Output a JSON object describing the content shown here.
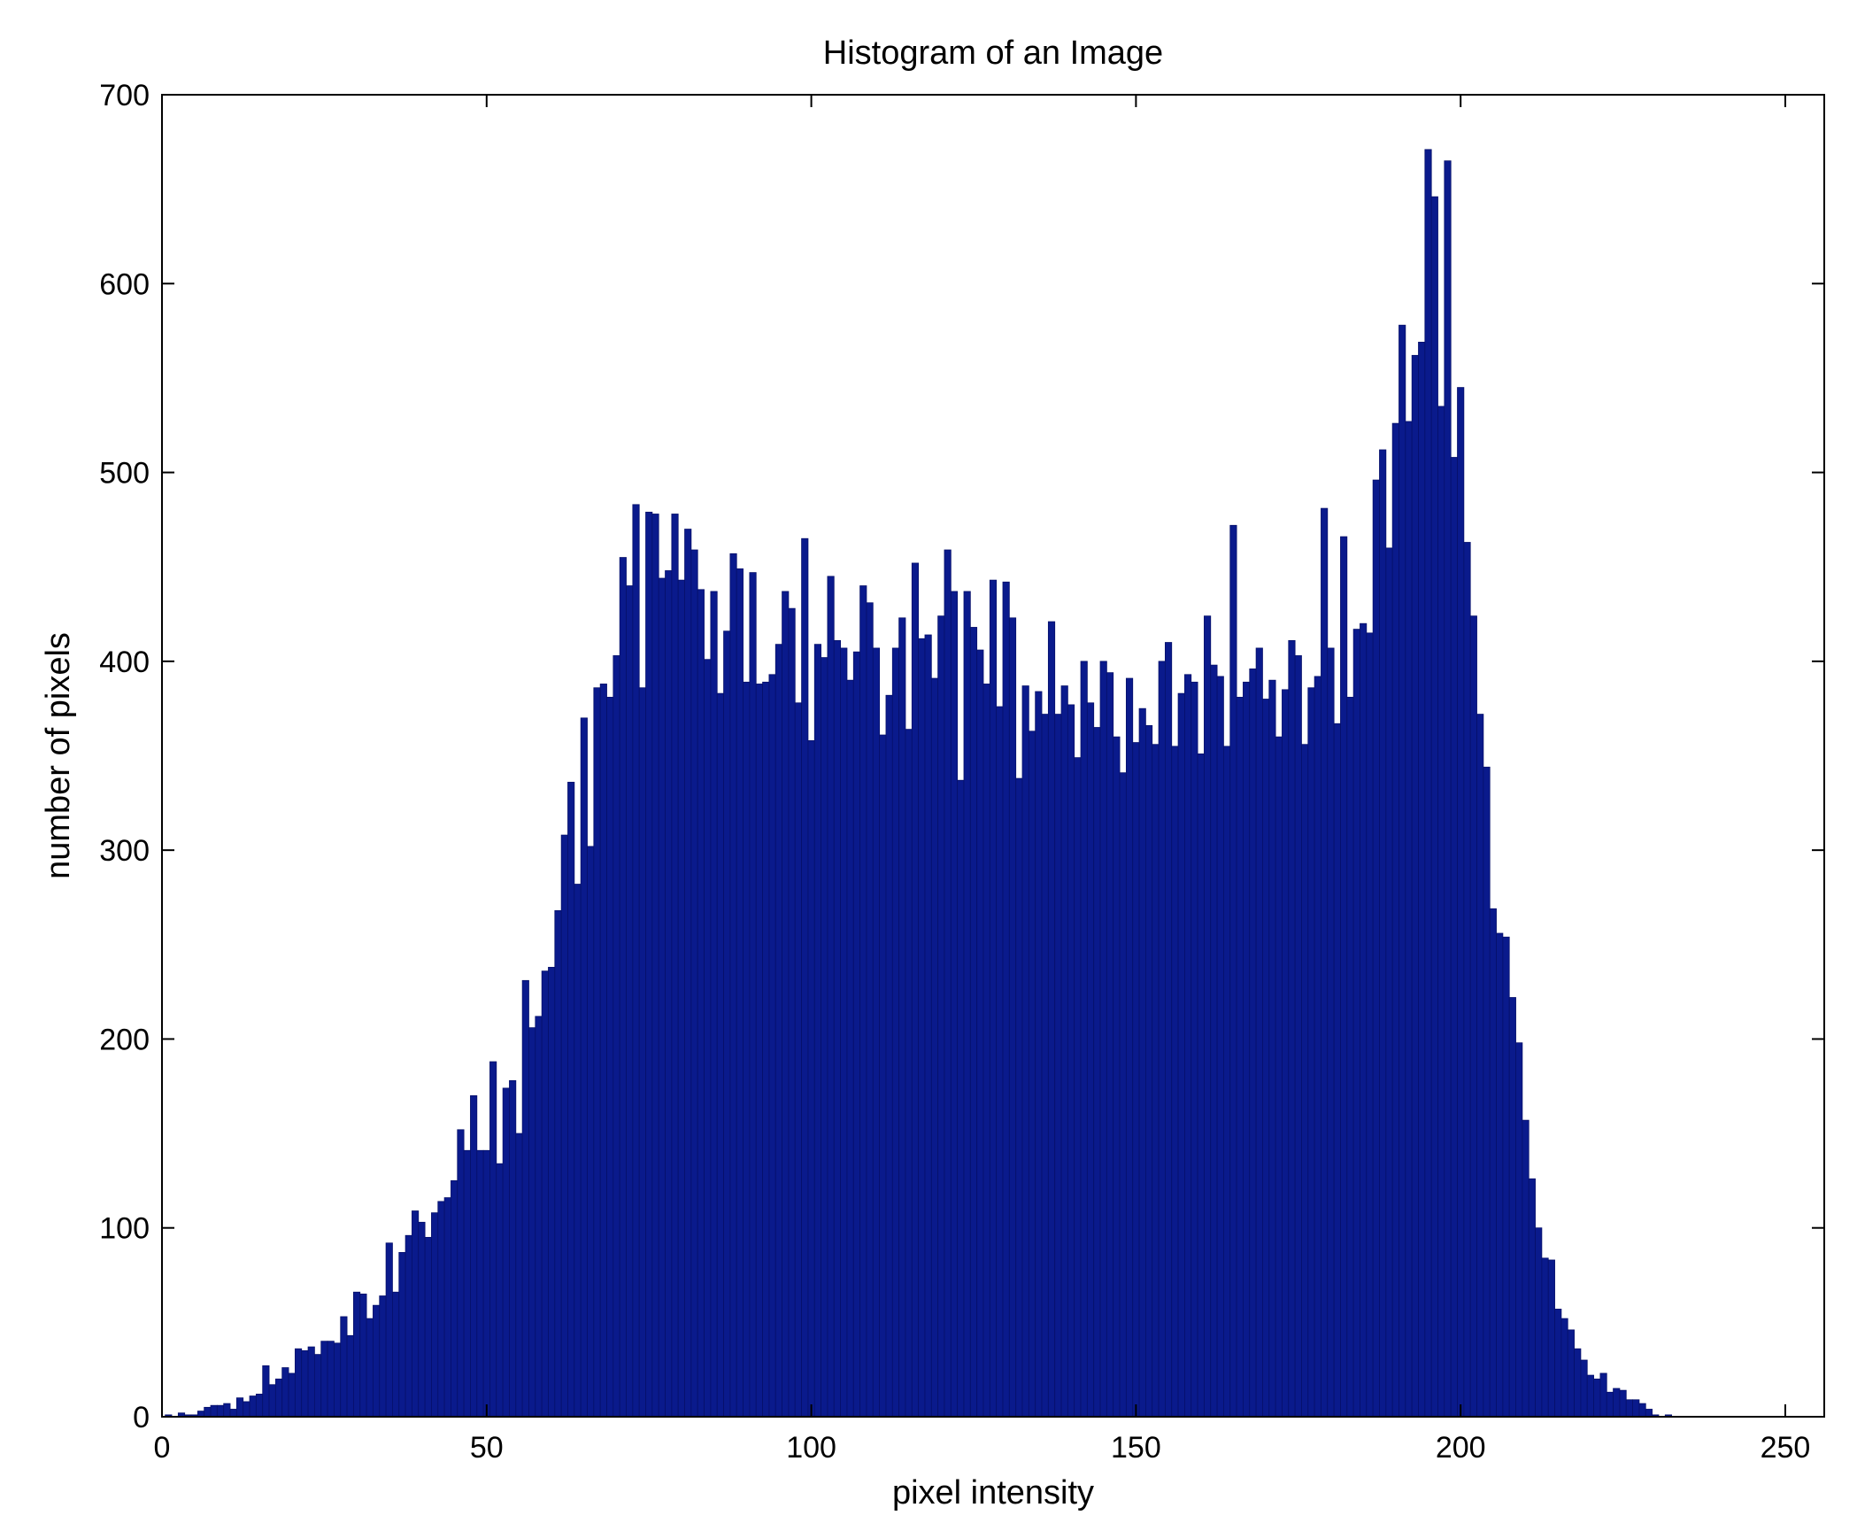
{
  "chart_data": {
    "type": "bar",
    "title": "Histogram of an Image",
    "xlabel": "pixel intensity",
    "ylabel": "number of pixels",
    "xlim": [
      0,
      256
    ],
    "ylim": [
      0,
      700
    ],
    "xticks": [
      0,
      50,
      100,
      150,
      200,
      250
    ],
    "yticks": [
      0,
      100,
      200,
      300,
      400,
      500,
      600,
      700
    ],
    "grid": false,
    "bar_color": "#0a1a8c",
    "bar_edge_color": "#06106a",
    "x": [
      1,
      2,
      3,
      4,
      5,
      6,
      7,
      8,
      9,
      10,
      11,
      12,
      13,
      14,
      15,
      16,
      17,
      18,
      19,
      20,
      21,
      22,
      23,
      24,
      25,
      26,
      27,
      28,
      29,
      30,
      31,
      32,
      33,
      34,
      35,
      36,
      37,
      38,
      39,
      40,
      41,
      42,
      43,
      44,
      45,
      46,
      47,
      48,
      49,
      50,
      51,
      52,
      53,
      54,
      55,
      56,
      57,
      58,
      59,
      60,
      61,
      62,
      63,
      64,
      65,
      66,
      67,
      68,
      69,
      70,
      71,
      72,
      73,
      74,
      75,
      76,
      77,
      78,
      79,
      80,
      81,
      82,
      83,
      84,
      85,
      86,
      87,
      88,
      89,
      90,
      91,
      92,
      93,
      94,
      95,
      96,
      97,
      98,
      99,
      100,
      101,
      102,
      103,
      104,
      105,
      106,
      107,
      108,
      109,
      110,
      111,
      112,
      113,
      114,
      115,
      116,
      117,
      118,
      119,
      120,
      121,
      122,
      123,
      124,
      125,
      126,
      127,
      128,
      129,
      130,
      131,
      132,
      133,
      134,
      135,
      136,
      137,
      138,
      139,
      140,
      141,
      142,
      143,
      144,
      145,
      146,
      147,
      148,
      149,
      150,
      151,
      152,
      153,
      154,
      155,
      156,
      157,
      158,
      159,
      160,
      161,
      162,
      163,
      164,
      165,
      166,
      167,
      168,
      169,
      170,
      171,
      172,
      173,
      174,
      175,
      176,
      177,
      178,
      179,
      180,
      181,
      182,
      183,
      184,
      185,
      186,
      187,
      188,
      189,
      190,
      191,
      192,
      193,
      194,
      195,
      196,
      197,
      198,
      199,
      200,
      201,
      202,
      203,
      204,
      205,
      206,
      207,
      208,
      209,
      210,
      211,
      212,
      213,
      214,
      215,
      216,
      217,
      218,
      219,
      220,
      221,
      222,
      223,
      224,
      225,
      226,
      227,
      228,
      229,
      230,
      231,
      232
    ],
    "values": [
      1,
      0,
      2,
      1,
      1,
      3,
      5,
      6,
      6,
      7,
      4,
      10,
      8,
      11,
      12,
      27,
      17,
      20,
      26,
      23,
      36,
      35,
      37,
      33,
      40,
      40,
      39,
      53,
      43,
      66,
      65,
      52,
      59,
      64,
      92,
      66,
      87,
      96,
      109,
      103,
      95,
      108,
      114,
      116,
      125,
      152,
      141,
      170,
      141,
      141,
      188,
      134,
      174,
      178,
      150,
      231,
      206,
      212,
      236,
      238,
      268,
      308,
      336,
      282,
      370,
      302,
      386,
      388,
      381,
      403,
      455,
      440,
      483,
      386,
      479,
      478,
      444,
      448,
      478,
      443,
      470,
      459,
      438,
      401,
      437,
      383,
      416,
      457,
      449,
      389,
      447,
      388,
      389,
      393,
      409,
      437,
      428,
      378,
      465,
      358,
      409,
      402,
      445,
      411,
      407,
      390,
      405,
      440,
      431,
      407,
      361,
      382,
      407,
      423,
      364,
      452,
      412,
      414,
      391,
      424,
      459,
      437,
      337,
      437,
      418,
      406,
      388,
      443,
      376,
      442,
      423,
      338,
      387,
      363,
      384,
      372,
      421,
      372,
      387,
      377,
      349,
      400,
      378,
      365,
      400,
      394,
      360,
      341,
      391,
      357,
      375,
      366,
      356,
      400,
      410,
      355,
      383,
      393,
      389,
      351,
      424,
      398,
      392,
      355,
      472,
      381,
      389,
      396,
      407,
      380,
      390,
      360,
      385,
      411,
      403,
      356,
      386,
      392,
      481,
      407,
      367,
      466,
      381,
      417,
      420,
      415,
      496,
      512,
      460,
      526,
      578,
      527,
      562,
      569,
      671,
      646,
      535,
      665,
      508,
      545,
      463,
      424,
      372,
      344,
      269,
      256,
      254,
      222,
      198,
      157,
      126,
      100,
      84,
      83,
      57,
      52,
      46,
      36,
      30,
      22,
      20,
      23,
      13,
      15,
      14,
      9,
      9,
      7,
      4,
      1,
      0,
      1
    ]
  }
}
